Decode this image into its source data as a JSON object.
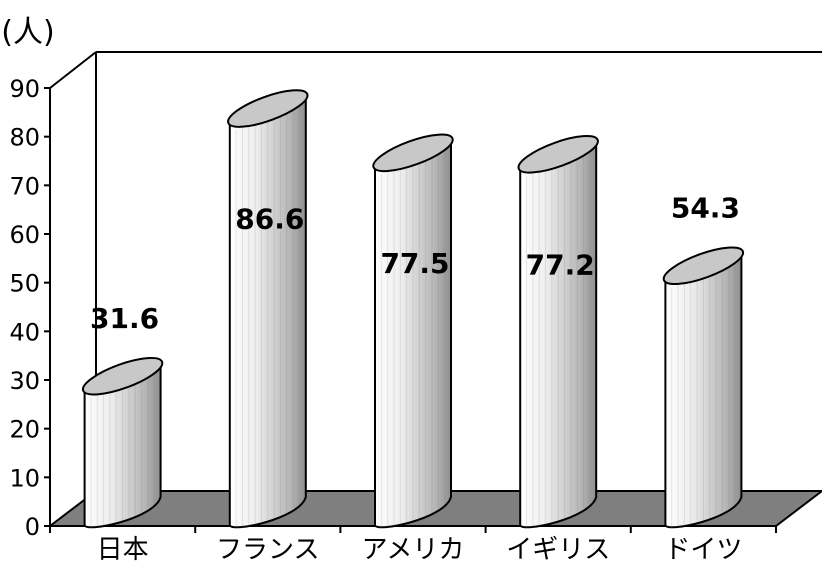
{
  "chart_data": {
    "type": "bar",
    "style": "3d-cylinder",
    "categories": [
      "日本",
      "フランス",
      "アメリカ",
      "イギリス",
      "ドイツ"
    ],
    "values": [
      31.6,
      86.6,
      77.5,
      77.2,
      54.3
    ],
    "value_labels": [
      "31.6",
      "86.6",
      "77.5",
      "77.2",
      "54.3"
    ],
    "unit_label": "(人)",
    "ylim": [
      0,
      90
    ],
    "yticks": [
      "0",
      "10",
      "20",
      "30",
      "40",
      "50",
      "60",
      "70",
      "80",
      "90"
    ],
    "grid": false,
    "legend": "none",
    "colors": {
      "bar_fill_light": "#f4f4f4",
      "bar_fill_dark": "#9a9a9a",
      "bar_top": "#c8c8c8",
      "floor": "#7f7f7f",
      "axis": "#000000"
    }
  }
}
